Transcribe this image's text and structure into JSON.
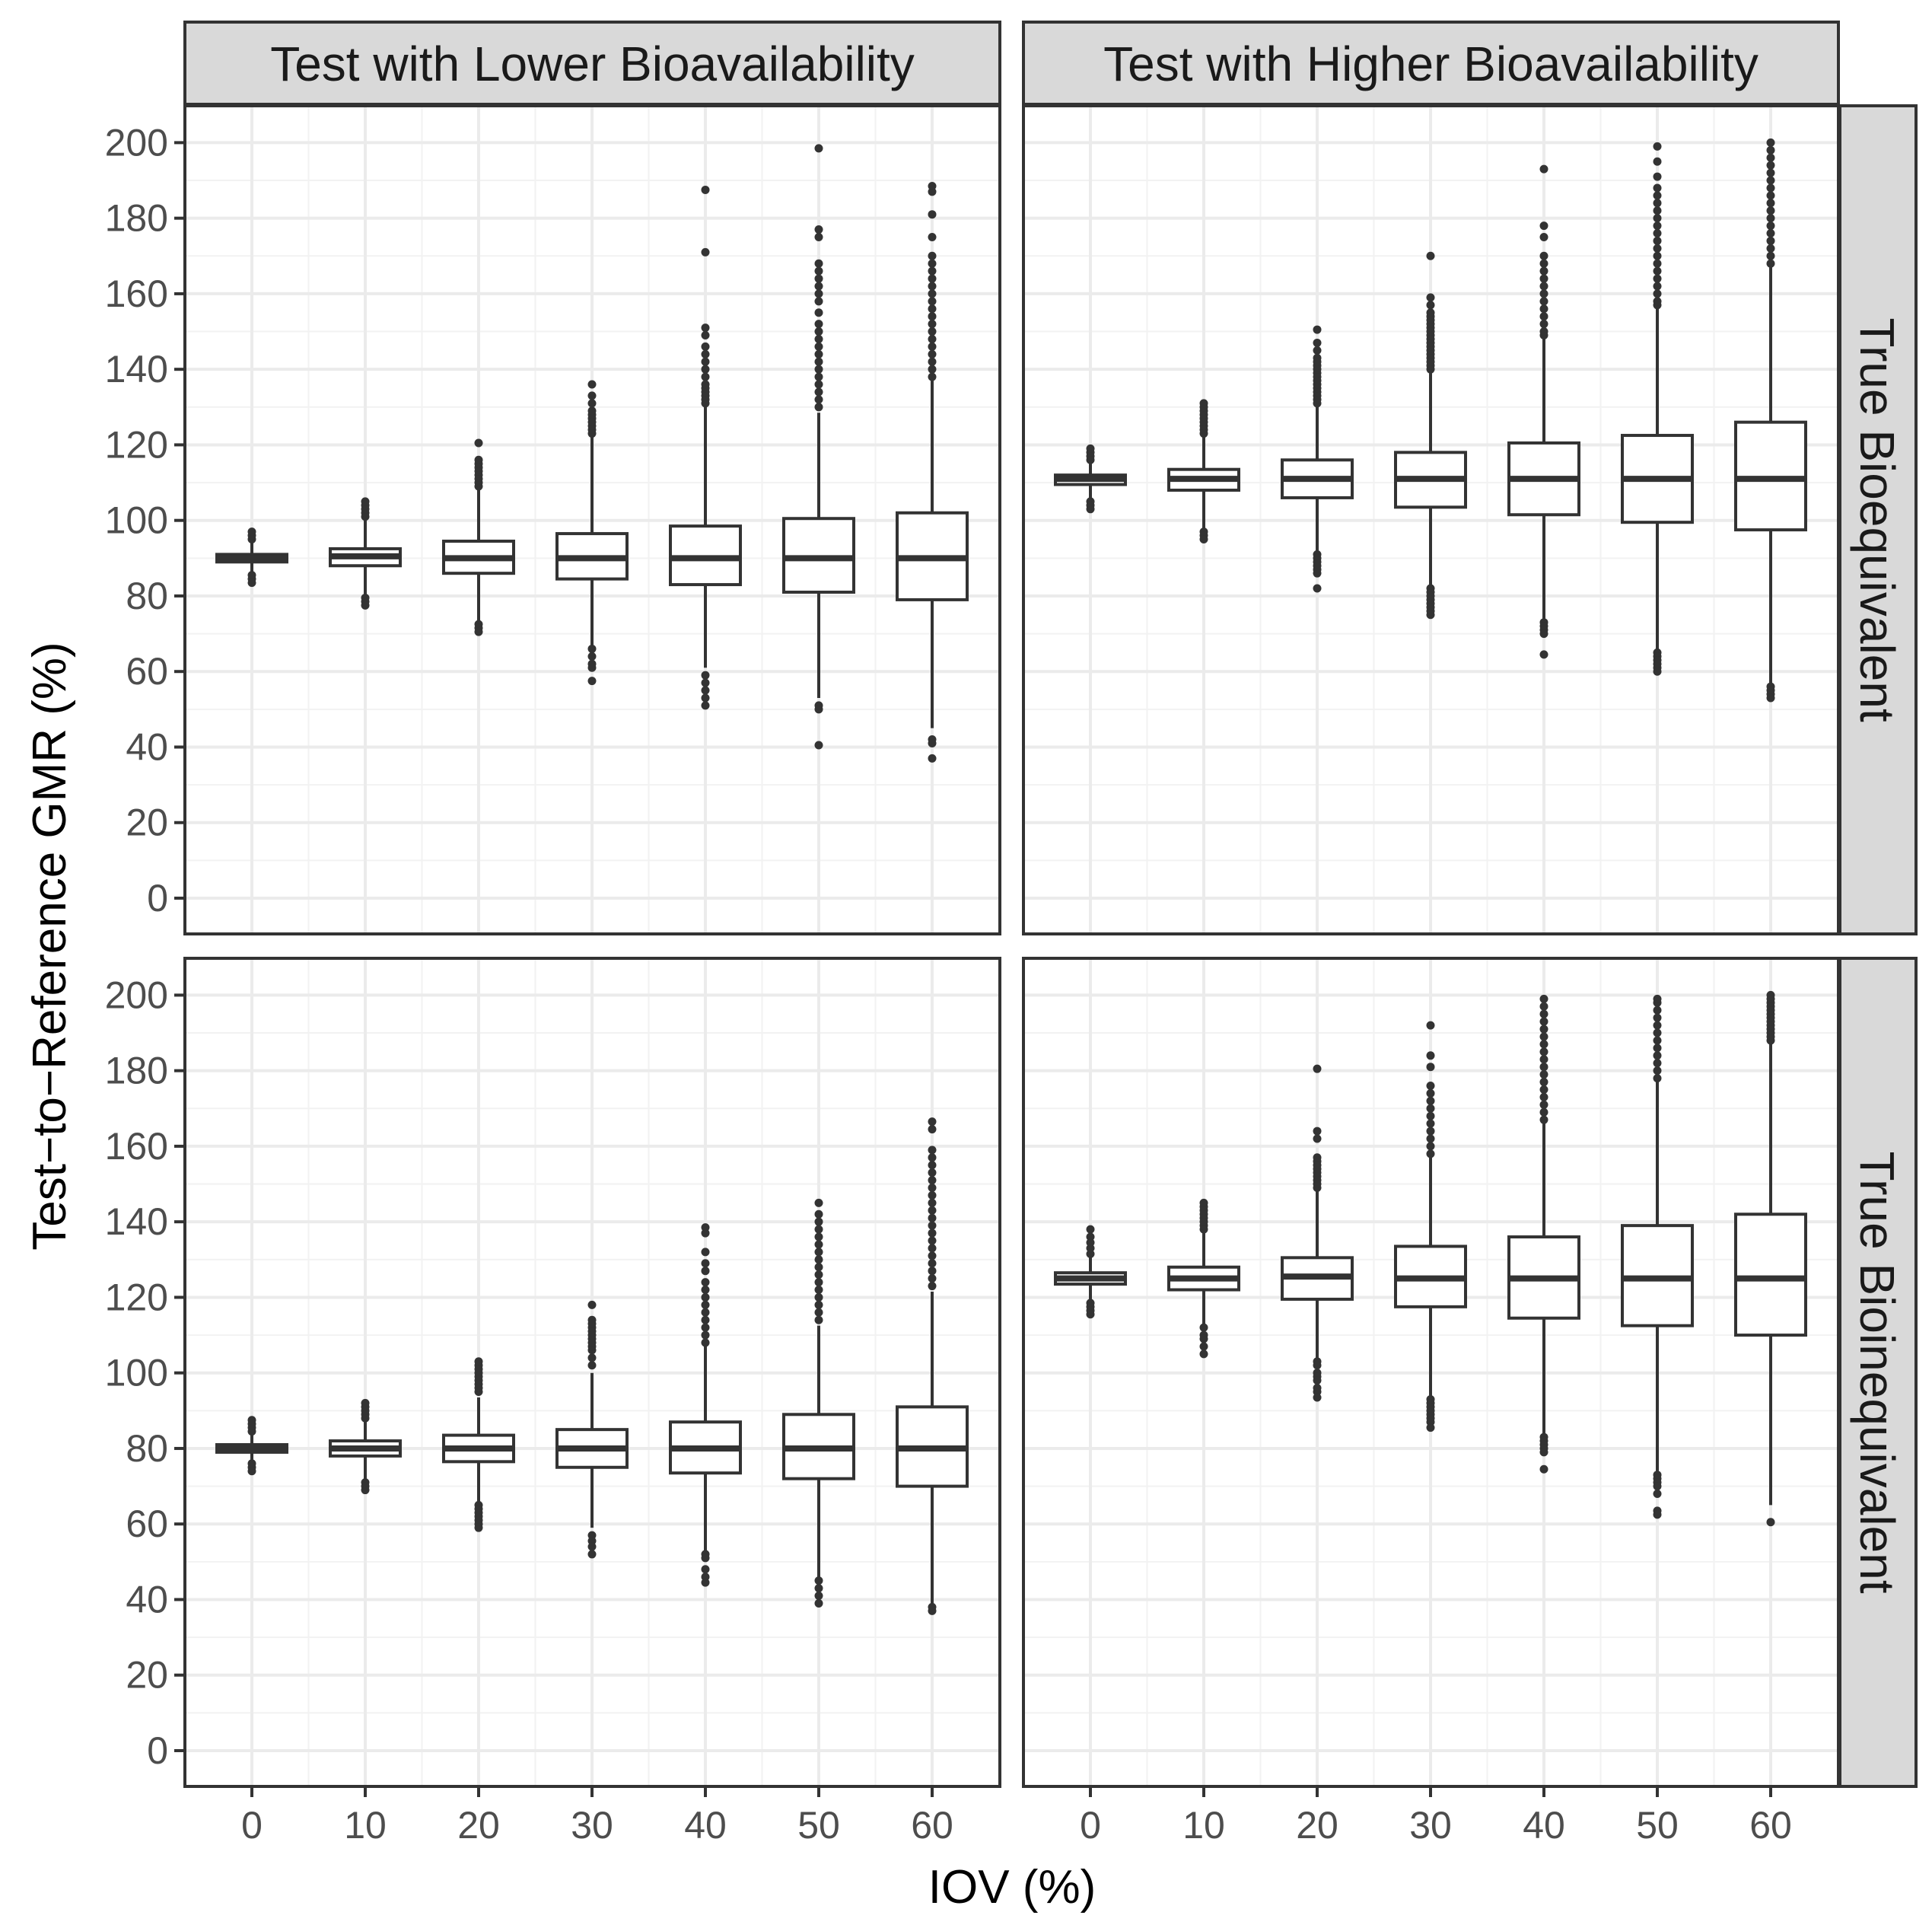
{
  "chart_data": {
    "type": "boxplot",
    "xlabel": "IOV (%)",
    "ylabel": "Test−to−Reference GMR (%)",
    "x_ticks": [
      "0",
      "10",
      "20",
      "30",
      "40",
      "50",
      "60"
    ],
    "y_ticks": [
      "0",
      "20",
      "40",
      "60",
      "80",
      "100",
      "120",
      "140",
      "160",
      "180",
      "200"
    ],
    "ylim": [
      -9,
      210
    ],
    "grid": true,
    "col_facets": [
      "Test with Lower Bioavailability",
      "Test with Higher Bioavailability"
    ],
    "row_facets": [
      "True Bioequivalent",
      "True Bioinequivalent"
    ],
    "panels": [
      {
        "col": "Test with Lower Bioavailability",
        "row": "True Bioequivalent",
        "boxes": [
          {
            "iov": 0,
            "whisker_low": 86.0,
            "q1": 89.0,
            "median": 90.0,
            "q3": 91.0,
            "whisker_high": 94.0,
            "outliers_low": [
              85.5,
              84.5,
              83.5
            ],
            "outliers_high": [
              95,
              96,
              97
            ]
          },
          {
            "iov": 10,
            "whisker_low": 80.0,
            "q1": 88.0,
            "median": 90.5,
            "q3": 92.5,
            "whisker_high": 100.0,
            "outliers_low": [
              79.5,
              78.5,
              77.5
            ],
            "outliers_high": [
              101,
              102,
              103,
              104,
              105
            ]
          },
          {
            "iov": 20,
            "whisker_low": 73.0,
            "q1": 86.0,
            "median": 90.0,
            "q3": 94.5,
            "whisker_high": 108.0,
            "outliers_low": [
              72.5,
              71.5,
              70.5
            ],
            "outliers_high": [
              109,
              110,
              111,
              112,
              113,
              114,
              115,
              116,
              120.5
            ]
          },
          {
            "iov": 30,
            "whisker_low": 67.0,
            "q1": 84.5,
            "median": 90.0,
            "q3": 96.5,
            "whisker_high": 122.0,
            "outliers_low": [
              66,
              64,
              62,
              61,
              57.5
            ],
            "outliers_high": [
              123,
              124,
              125,
              126,
              127,
              128,
              129,
              131,
              133,
              136
            ]
          },
          {
            "iov": 40,
            "whisker_low": 61.0,
            "q1": 83.0,
            "median": 90.0,
            "q3": 98.5,
            "whisker_high": 130.0,
            "outliers_low": [
              59,
              57,
              55,
              53,
              51
            ],
            "outliers_high": [
              131,
              132,
              133,
              134,
              135,
              136,
              138,
              140,
              142,
              144,
              146,
              149,
              151,
              171,
              187.5
            ]
          },
          {
            "iov": 50,
            "whisker_low": 53.0,
            "q1": 81.0,
            "median": 90.0,
            "q3": 100.5,
            "whisker_high": 128.5,
            "outliers_low": [
              51,
              50,
              40.5
            ],
            "outliers_high": [
              130,
              132,
              134,
              136,
              138,
              140,
              142,
              144,
              146,
              148,
              150,
              152,
              155,
              158,
              160,
              162,
              164,
              166,
              168,
              175,
              177,
              198.5
            ]
          },
          {
            "iov": 60,
            "whisker_low": 45.0,
            "q1": 79.0,
            "median": 90.0,
            "q3": 102.0,
            "whisker_high": 137.0,
            "outliers_low": [
              42,
              41,
              37
            ],
            "outliers_high": [
              138,
              140,
              142,
              144,
              146,
              148,
              150,
              152,
              154,
              156,
              158,
              160,
              162,
              164,
              166,
              168,
              170,
              175,
              181,
              187,
              188.5
            ]
          }
        ]
      },
      {
        "col": "Test with Higher Bioavailability",
        "row": "True Bioequivalent",
        "boxes": [
          {
            "iov": 0,
            "whisker_low": 105.5,
            "q1": 109.5,
            "median": 111.0,
            "q3": 112.0,
            "whisker_high": 115.5,
            "outliers_low": [
              105,
              104,
              103
            ],
            "outliers_high": [
              116,
              117,
              118,
              119
            ]
          },
          {
            "iov": 10,
            "whisker_low": 98.0,
            "q1": 108.0,
            "median": 111.0,
            "q3": 113.5,
            "whisker_high": 122.0,
            "outliers_low": [
              97,
              96,
              95
            ],
            "outliers_high": [
              123,
              124,
              125,
              126,
              127,
              128,
              129,
              130,
              131
            ]
          },
          {
            "iov": 20,
            "whisker_low": 92.0,
            "q1": 106.0,
            "median": 111.0,
            "q3": 116.0,
            "whisker_high": 130.0,
            "outliers_low": [
              91,
              90,
              89,
              88,
              87,
              86,
              82
            ],
            "outliers_high": [
              131,
              132,
              133,
              134,
              135,
              136,
              137,
              138,
              139,
              140,
              141,
              142,
              143,
              145,
              147,
              150.5
            ]
          },
          {
            "iov": 30,
            "whisker_low": 83.0,
            "q1": 103.5,
            "median": 111.0,
            "q3": 118.0,
            "whisker_high": 139.0,
            "outliers_low": [
              82,
              81,
              80,
              79,
              78,
              77,
              76,
              75
            ],
            "outliers_high": [
              140,
              141,
              142,
              143,
              144,
              145,
              146,
              147,
              148,
              149,
              150,
              151,
              152,
              153,
              154,
              155,
              157,
              159,
              170
            ]
          },
          {
            "iov": 40,
            "whisker_low": 74.0,
            "q1": 101.5,
            "median": 111.0,
            "q3": 120.5,
            "whisker_high": 148.0,
            "outliers_low": [
              73,
              72,
              71,
              70,
              64.5
            ],
            "outliers_high": [
              149,
              150,
              152,
              154,
              156,
              158,
              160,
              162,
              164,
              166,
              168,
              170,
              175,
              178,
              193
            ]
          },
          {
            "iov": 50,
            "whisker_low": 66.0,
            "q1": 99.5,
            "median": 111.0,
            "q3": 122.5,
            "whisker_high": 156.0,
            "outliers_low": [
              65,
              64,
              63,
              62,
              61,
              60
            ],
            "outliers_high": [
              157,
              158,
              160,
              162,
              164,
              166,
              168,
              170,
              172,
              174,
              176,
              178,
              180,
              182,
              184,
              186,
              188,
              191,
              195,
              199
            ]
          },
          {
            "iov": 60,
            "whisker_low": 57.0,
            "q1": 97.5,
            "median": 111.0,
            "q3": 126.0,
            "whisker_high": 167.0,
            "outliers_low": [
              56,
              55,
              54,
              53
            ],
            "outliers_high": [
              168,
              170,
              172,
              174,
              176,
              178,
              180,
              182,
              184,
              186,
              188,
              190,
              192,
              194,
              196,
              198,
              200
            ]
          }
        ]
      },
      {
        "col": "Test with Lower Bioavailability",
        "row": "True Bioinequivalent",
        "boxes": [
          {
            "iov": 0,
            "whisker_low": 77.0,
            "q1": 79.0,
            "median": 80.0,
            "q3": 81.0,
            "whisker_high": 83.5,
            "outliers_low": [
              76,
              75,
              74
            ],
            "outliers_high": [
              84.5,
              85.5,
              86.5,
              87.5
            ]
          },
          {
            "iov": 10,
            "whisker_low": 72.0,
            "q1": 78.0,
            "median": 80.0,
            "q3": 82.0,
            "whisker_high": 87.0,
            "outliers_low": [
              71,
              70,
              69
            ],
            "outliers_high": [
              88,
              89,
              90,
              91,
              92
            ]
          },
          {
            "iov": 20,
            "whisker_low": 66.0,
            "q1": 76.5,
            "median": 80.0,
            "q3": 83.5,
            "whisker_high": 93.5,
            "outliers_low": [
              65,
              64,
              63,
              62,
              61,
              60,
              59
            ],
            "outliers_high": [
              95,
              96,
              97,
              98,
              99,
              100,
              101,
              102,
              103
            ]
          },
          {
            "iov": 30,
            "whisker_low": 59.0,
            "q1": 75.0,
            "median": 80.0,
            "q3": 85.0,
            "whisker_high": 100.0,
            "outliers_low": [
              57,
              55.5,
              54,
              52
            ],
            "outliers_high": [
              102,
              104,
              106,
              107,
              108,
              109,
              110,
              111,
              112,
              113,
              114,
              118
            ]
          },
          {
            "iov": 40,
            "whisker_low": 53.0,
            "q1": 73.5,
            "median": 80.0,
            "q3": 87.0,
            "whisker_high": 107.0,
            "outliers_low": [
              52,
              51,
              48,
              46,
              44.5
            ],
            "outliers_high": [
              108,
              110,
              112,
              114,
              116,
              118,
              120,
              122,
              124,
              127,
              129,
              132,
              137,
              138.5
            ]
          },
          {
            "iov": 50,
            "whisker_low": 46.0,
            "q1": 72.0,
            "median": 80.0,
            "q3": 89.0,
            "whisker_high": 112.5,
            "outliers_low": [
              45,
              43,
              41,
              39
            ],
            "outliers_high": [
              114,
              116,
              118,
              120,
              122,
              124,
              126,
              128,
              130,
              132,
              134,
              136,
              138,
              140,
              142,
              145
            ]
          },
          {
            "iov": 60,
            "whisker_low": 39.0,
            "q1": 70.0,
            "median": 80.0,
            "q3": 91.0,
            "whisker_high": 121.5,
            "outliers_low": [
              38,
              37
            ],
            "outliers_high": [
              123,
              125,
              127,
              129,
              131,
              133,
              135,
              137,
              139,
              141,
              143,
              145,
              147,
              149,
              151,
              153,
              155,
              157,
              159,
              164.5,
              166.5
            ]
          }
        ]
      },
      {
        "col": "Test with Higher Bioavailability",
        "row": "True Bioinequivalent",
        "boxes": [
          {
            "iov": 0,
            "whisker_low": 119.0,
            "q1": 123.5,
            "median": 125.0,
            "q3": 126.5,
            "whisker_high": 130.5,
            "outliers_low": [
              118.5,
              117.5,
              116.5,
              115.5
            ],
            "outliers_high": [
              131.5,
              133,
              134.5,
              136,
              138
            ]
          },
          {
            "iov": 10,
            "whisker_low": 113.0,
            "q1": 122.0,
            "median": 125.0,
            "q3": 128.0,
            "whisker_high": 137.0,
            "outliers_low": [
              112,
              110,
              109,
              107,
              105
            ],
            "outliers_high": [
              138,
              139,
              140,
              141,
              142,
              143,
              144,
              145
            ]
          },
          {
            "iov": 20,
            "whisker_low": 104.0,
            "q1": 119.5,
            "median": 125.5,
            "q3": 130.5,
            "whisker_high": 148.0,
            "outliers_low": [
              103,
              102,
              100,
              99,
              98,
              96,
              95,
              93.5
            ],
            "outliers_high": [
              149,
              150,
              151,
              152,
              153,
              154,
              155,
              156,
              157,
              162,
              164,
              180.5
            ]
          },
          {
            "iov": 30,
            "whisker_low": 94.0,
            "q1": 117.5,
            "median": 125.0,
            "q3": 133.5,
            "whisker_high": 157.0,
            "outliers_low": [
              93,
              92,
              91,
              90,
              89,
              88,
              87,
              85.5
            ],
            "outliers_high": [
              158,
              160,
              162,
              164,
              166,
              168,
              170,
              172,
              174,
              176,
              181,
              184,
              192
            ]
          },
          {
            "iov": 40,
            "whisker_low": 84.0,
            "q1": 114.5,
            "median": 125.0,
            "q3": 136.0,
            "whisker_high": 166.0,
            "outliers_low": [
              83,
              82,
              81,
              80,
              79,
              74.5
            ],
            "outliers_high": [
              167,
              169,
              171,
              173,
              175,
              177,
              179,
              181,
              183,
              185,
              187,
              189,
              191,
              193,
              195,
              197,
              199
            ]
          },
          {
            "iov": 50,
            "whisker_low": 74.0,
            "q1": 112.5,
            "median": 125.0,
            "q3": 139.0,
            "whisker_high": 177.0,
            "outliers_low": [
              73,
              72,
              71,
              70,
              68,
              63.5,
              62.5
            ],
            "outliers_high": [
              178,
              180,
              182,
              184,
              186,
              188,
              190,
              192,
              194,
              196,
              198,
              199
            ]
          },
          {
            "iov": 60,
            "whisker_low": 65.0,
            "q1": 110.0,
            "median": 125.0,
            "q3": 142.0,
            "whisker_high": 187.0,
            "outliers_low": [
              60.5
            ],
            "outliers_high": [
              188,
              189,
              190,
              191,
              192,
              193,
              194,
              195,
              196,
              197,
              198,
              199,
              200
            ]
          }
        ]
      }
    ]
  }
}
